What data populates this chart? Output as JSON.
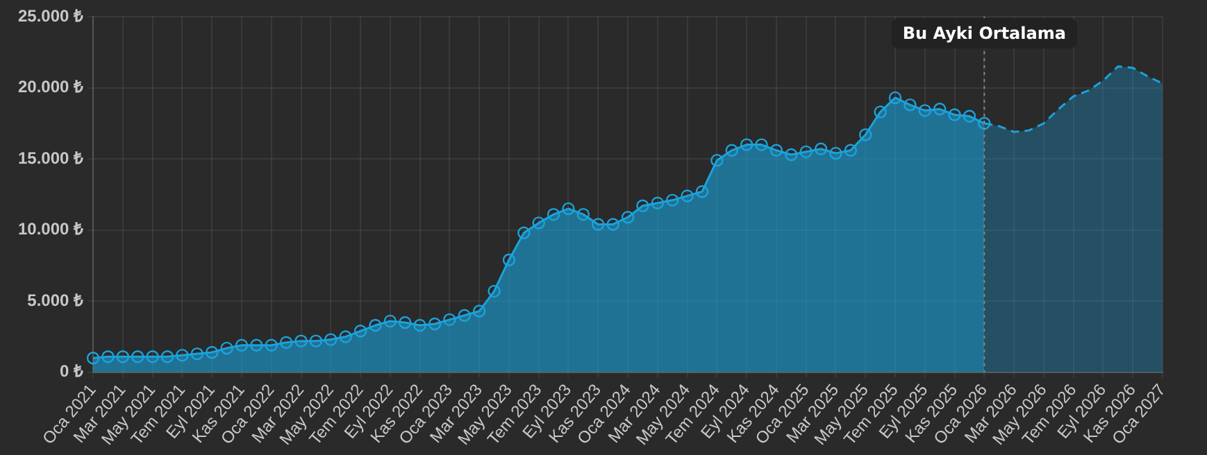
{
  "chart_data": {
    "type": "area",
    "categories": [
      "Oca 2021",
      null,
      "Mar 2021",
      null,
      "May 2021",
      null,
      "Tem 2021",
      null,
      "Eyl 2021",
      null,
      "Kas 2021",
      null,
      "Oca 2022",
      null,
      "Mar 2022",
      null,
      "May 2022",
      null,
      "Tem 2022",
      null,
      "Eyl 2022",
      null,
      "Kas 2022",
      null,
      "Oca 2023",
      null,
      "Mar 2023",
      null,
      "May 2023",
      null,
      "Tem 2023",
      null,
      "Eyl 2023",
      null,
      "Kas 2023",
      null,
      "Oca 2024",
      null,
      "Mar 2024",
      null,
      "May 2024",
      null,
      "Tem 2024",
      null,
      "Eyl 2024",
      null,
      "Kas 2024",
      null,
      "Oca 2025",
      null,
      "Mar 2025",
      null,
      "May 2025",
      null,
      "Tem 2025",
      null,
      "Eyl 2025",
      null,
      "Kas 2025",
      null,
      "Oca 2026",
      null,
      "Mar 2026",
      null,
      "May 2026",
      null,
      "Tem 2026",
      null,
      "Eyl 2026",
      null,
      "Kas 2026",
      null,
      "Oca 2027"
    ],
    "series": [
      {
        "color": "#1ba3dc",
        "marker": "circle",
        "line_style": "solid",
        "values": [
          1000,
          1100,
          1100,
          1100,
          1100,
          1100,
          1200,
          1300,
          1400,
          1700,
          1900,
          1900,
          1900,
          2100,
          2200,
          2200,
          2300,
          2500,
          2900,
          3300,
          3600,
          3500,
          3300,
          3400,
          3700,
          4000,
          4300,
          5700,
          7900,
          9800,
          10500,
          11100,
          11500,
          11100,
          10400,
          10400,
          10900,
          11700,
          11900,
          12100,
          12400,
          12700,
          14900,
          15600,
          16000,
          16000,
          15600,
          15300,
          15500,
          15700,
          15400,
          15600,
          16700,
          18300,
          19300,
          18800,
          18400,
          18500,
          18100,
          18000,
          17500,
          null,
          null,
          null,
          null,
          null,
          null,
          null,
          null,
          null,
          null,
          null,
          null
        ]
      },
      {
        "color": "#1ba3dc",
        "marker": "none",
        "line_style": "dashed",
        "values": [
          null,
          null,
          null,
          null,
          null,
          null,
          null,
          null,
          null,
          null,
          null,
          null,
          null,
          null,
          null,
          null,
          null,
          null,
          null,
          null,
          null,
          null,
          null,
          null,
          null,
          null,
          null,
          null,
          null,
          null,
          null,
          null,
          null,
          null,
          null,
          null,
          null,
          null,
          null,
          null,
          null,
          null,
          null,
          null,
          null,
          null,
          null,
          null,
          null,
          null,
          null,
          null,
          null,
          null,
          null,
          null,
          null,
          null,
          null,
          null,
          17500,
          17300,
          16900,
          17000,
          17500,
          18500,
          19400,
          19800,
          20500,
          21500,
          21400,
          20800,
          20300
        ]
      }
    ],
    "ylim": [
      0,
      25000
    ],
    "yticks": [
      {
        "value": 0,
        "label": "0 ₺"
      },
      {
        "value": 5000,
        "label": "5.000 ₺"
      },
      {
        "value": 10000,
        "label": "10.000 ₺"
      },
      {
        "value": 15000,
        "label": "15.000 ₺"
      },
      {
        "value": 20000,
        "label": "20.000 ₺"
      },
      {
        "value": 25000,
        "label": "25.000 ₺"
      }
    ],
    "ref_lines": [
      {
        "axis": "x",
        "value": "Oca 2026",
        "label": "Bu Ayki Ortalama",
        "line_style": "dotted",
        "color": "#888888"
      }
    ],
    "grid": true,
    "legend": false
  }
}
